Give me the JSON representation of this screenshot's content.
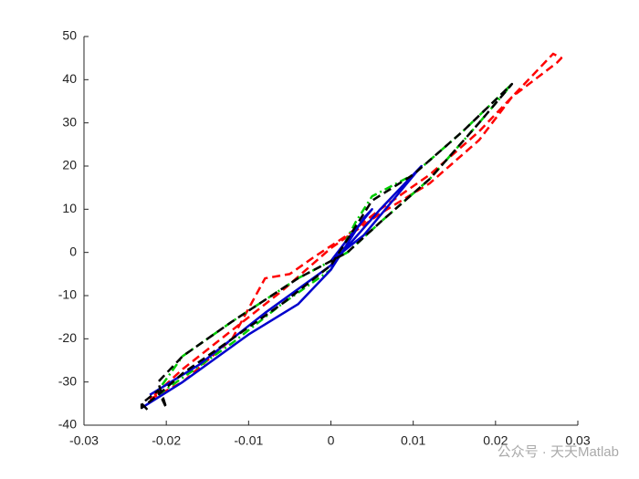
{
  "chart_data": {
    "type": "line",
    "xlim": [
      -0.03,
      0.03
    ],
    "xticks": [
      -0.03,
      -0.02,
      -0.01,
      0,
      0.01,
      0.02,
      0.03
    ],
    "ylim": [
      -40,
      50
    ],
    "yticks": [
      -40,
      -30,
      -20,
      -10,
      0,
      10,
      20,
      30,
      40,
      50
    ],
    "series": [
      {
        "color": "#ff0000",
        "style": "dashed",
        "x": [
          -0.022,
          -0.018,
          -0.012,
          -0.008,
          -0.005,
          -0.002,
          0.002,
          0.006,
          0.012,
          0.018,
          0.022,
          0.027,
          0.028,
          0.0275,
          0.022,
          0.018,
          0.012,
          0.006,
          0.0,
          -0.006,
          -0.012,
          -0.018,
          -0.022
        ],
        "values": [
          -34,
          -30,
          -20,
          -6,
          -5,
          -1,
          4,
          10,
          18,
          28,
          36,
          46,
          45,
          44,
          36,
          26,
          16,
          9,
          1,
          -9,
          -18,
          -27,
          -34
        ]
      },
      {
        "color": "#00cc00",
        "style": "dashdot",
        "x": [
          -0.021,
          -0.018,
          -0.012,
          -0.006,
          0,
          0.003,
          0.005,
          0.01,
          0.016,
          0.022,
          0.018,
          0.012,
          0.006,
          0.002,
          -0.004,
          -0.012,
          -0.018,
          -0.021
        ],
        "values": [
          -33,
          -29,
          -21,
          -12,
          -4,
          7,
          13,
          18,
          28,
          39,
          30,
          17,
          7,
          0,
          -6,
          -16,
          -24,
          -32
        ]
      },
      {
        "color": "#0000cc",
        "style": "solid",
        "x": [
          -0.023,
          -0.018,
          -0.01,
          -0.004,
          0,
          0.004,
          0.005,
          0.002,
          0,
          0.004,
          0.011,
          0.006,
          0,
          -0.008,
          -0.016,
          -0.022
        ],
        "values": [
          -36,
          -30,
          -19,
          -12,
          -4,
          8,
          10,
          3,
          -2,
          4,
          20,
          10,
          -3,
          -14,
          -26,
          -33
        ]
      },
      {
        "color": "#000000",
        "style": "dashed",
        "x": [
          -0.023,
          -0.023,
          -0.021,
          -0.018,
          -0.012,
          -0.006,
          0,
          0.003,
          0.005,
          0.01,
          0.016,
          0.022,
          0.018,
          0.012,
          0.006,
          0.002,
          -0.004,
          -0.012,
          -0.018,
          -0.021,
          -0.02,
          -0.021,
          -0.023,
          -0.022
        ],
        "values": [
          -35,
          -36,
          -33,
          -28,
          -20,
          -12,
          -3,
          6,
          12,
          18,
          28,
          39,
          30,
          17,
          7,
          0,
          -6,
          -16,
          -24,
          -30,
          -36,
          -32,
          -35,
          -37
        ]
      }
    ]
  },
  "watermark": "公众号 · 天天Matlab"
}
